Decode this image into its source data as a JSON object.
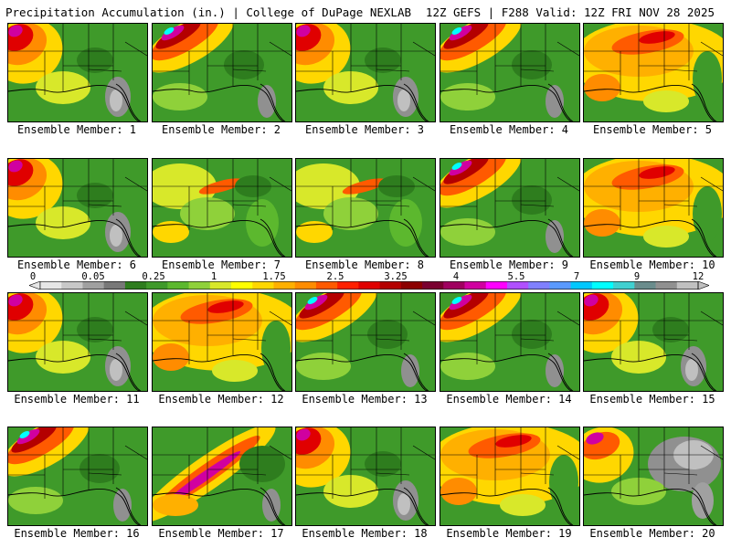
{
  "header": {
    "left": "Precipitation Accumulation (in.) | College of DuPage NEXLAB",
    "right": "12Z GEFS | F288 Valid: 12Z FRI NOV 28 2025"
  },
  "colorbar": {
    "labels": [
      "0",
      "0.05",
      "0.25",
      "1",
      "1.75",
      "2.5",
      "3.25",
      "4",
      "5.5",
      "7",
      "9",
      "12"
    ],
    "colors": [
      "#e6e6e6",
      "#c8c8c8",
      "#a0a0a0",
      "#787878",
      "#2e7d1e",
      "#3f9a2a",
      "#5cb82e",
      "#8fd13a",
      "#d8e82a",
      "#ffff00",
      "#ffd700",
      "#ffb000",
      "#ff8c00",
      "#ff5a00",
      "#ff2000",
      "#e00000",
      "#b40000",
      "#8c0000",
      "#7a0030",
      "#a00060",
      "#d000a0",
      "#ff00ff",
      "#b050ff",
      "#8080ff",
      "#5a9aff",
      "#00c8ff",
      "#00ffff",
      "#40d0d0",
      "#6a8c8c",
      "#909090",
      "#c0c0c0"
    ]
  },
  "panels": [
    {
      "label": "Ensemble Member: 1",
      "style": "wet-west"
    },
    {
      "label": "Ensemble Member: 2",
      "style": "wet-north"
    },
    {
      "label": "Ensemble Member: 3",
      "style": "wet-west"
    },
    {
      "label": "Ensemble Member: 4",
      "style": "wet-north"
    },
    {
      "label": "Ensemble Member: 5",
      "style": "wet-broad"
    },
    {
      "label": "Ensemble Member: 6",
      "style": "wet-west"
    },
    {
      "label": "Ensemble Member: 7",
      "style": "moderate"
    },
    {
      "label": "Ensemble Member: 8",
      "style": "moderate"
    },
    {
      "label": "Ensemble Member: 9",
      "style": "wet-north"
    },
    {
      "label": "Ensemble Member: 10",
      "style": "wet-broad"
    },
    {
      "label": "Ensemble Member: 11",
      "style": "wet-west"
    },
    {
      "label": "Ensemble Member: 12",
      "style": "wet-broad"
    },
    {
      "label": "Ensemble Member: 13",
      "style": "wet-north"
    },
    {
      "label": "Ensemble Member: 14",
      "style": "wet-north"
    },
    {
      "label": "Ensemble Member: 15",
      "style": "wet-west"
    },
    {
      "label": "Ensemble Member: 16",
      "style": "wet-north"
    },
    {
      "label": "Ensemble Member: 17",
      "style": "wet-band"
    },
    {
      "label": "Ensemble Member: 18",
      "style": "wet-west"
    },
    {
      "label": "Ensemble Member: 19",
      "style": "wet-broad"
    },
    {
      "label": "Ensemble Member: 20",
      "style": "dry-east"
    }
  ]
}
